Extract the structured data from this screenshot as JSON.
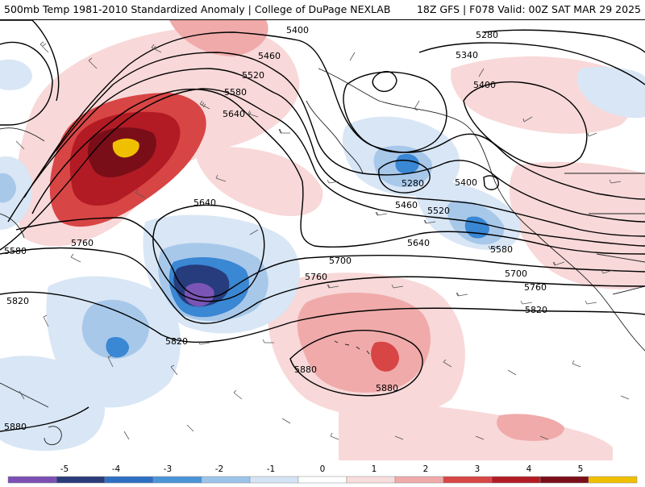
{
  "header": {
    "title_left": "500mb Temp 1981-2010 Standardized Anomaly | College of DuPage NEXLAB",
    "title_right": "18Z GFS | F078 Valid: 00Z SAT MAR 29 2025"
  },
  "contour_labels": [
    "5280",
    "5340",
    "5400",
    "5460",
    "5520",
    "5580",
    "5640",
    "5700",
    "5760",
    "5820",
    "5880"
  ],
  "colorbar": {
    "ticks": [
      "-5",
      "-4",
      "-3",
      "-2",
      "-1",
      "0",
      "1",
      "2",
      "3",
      "4",
      "5"
    ],
    "colors": [
      "#7b4fb3",
      "#2a3a7a",
      "#2d6fc4",
      "#4a95d8",
      "#9cc4ea",
      "#d5e4f4",
      "#ffffff",
      "#f9dede",
      "#f0aaaa",
      "#d84545",
      "#b31b24",
      "#7a0e18",
      "#f0c000"
    ]
  },
  "colors": {
    "strong_warm": "#8a0d1a",
    "warm": "#c4262f",
    "mild_warm": "#ec9999",
    "light_warm": "#f8d8d8",
    "light_cold": "#d8e6f5",
    "mild_cold": "#a8c8ea",
    "cold": "#3a87d3",
    "strong_cold": "#263c7c",
    "extreme_cold": "#7a55b5",
    "extreme_warm": "#f0c000"
  }
}
